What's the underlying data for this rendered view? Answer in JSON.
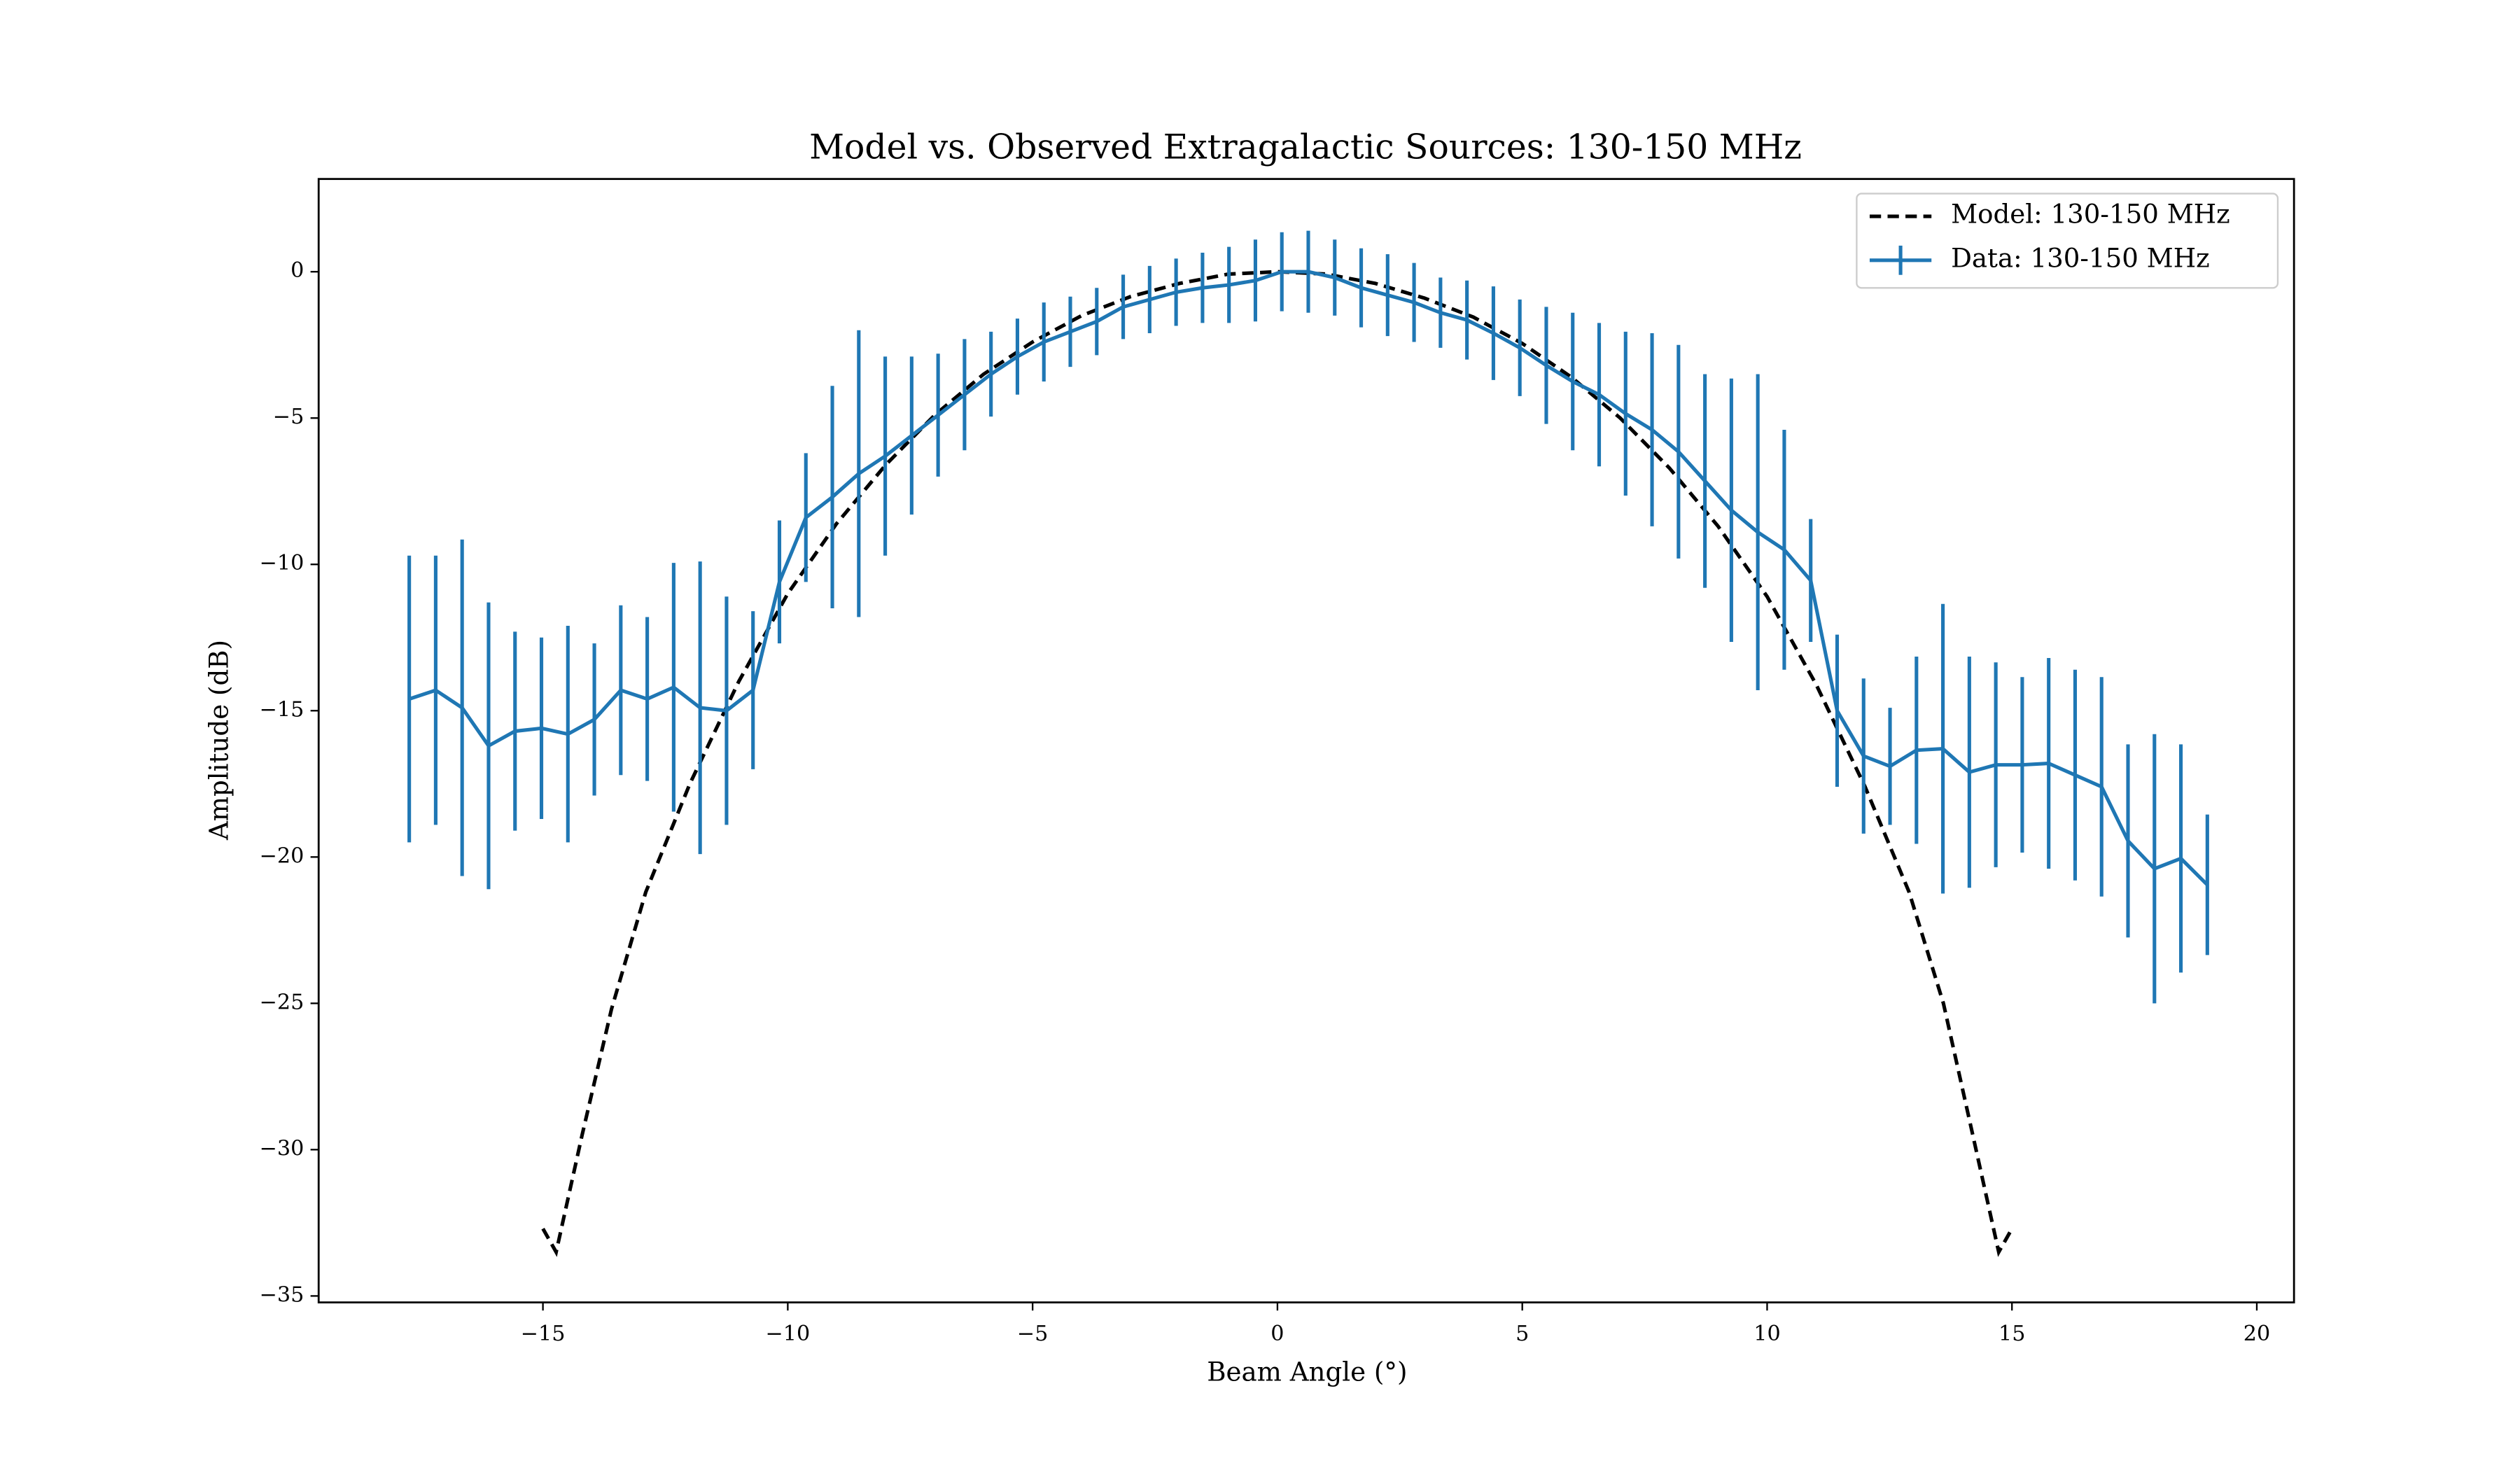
{
  "chart_data": {
    "type": "line",
    "title": "Model vs. Observed Extragalactic Sources: 130-150 MHz",
    "x_label": "Beam Angle (°)",
    "y_label": "Amplitude (dB)",
    "xlim": [
      -19.58,
      20.76
    ],
    "ylim": [
      -35.22,
      3.17
    ],
    "xticks": [
      {
        "value": -15,
        "label": "−15"
      },
      {
        "value": -10,
        "label": "−10"
      },
      {
        "value": -5,
        "label": "−5"
      },
      0,
      5,
      10,
      15,
      20
    ],
    "yticks": [
      0,
      {
        "value": -5,
        "label": "−5"
      },
      {
        "value": -10,
        "label": "−10"
      },
      {
        "value": -15,
        "label": "−15"
      },
      {
        "value": -20,
        "label": "−20"
      },
      {
        "value": -25,
        "label": "−25"
      },
      {
        "value": -30,
        "label": "−30"
      },
      {
        "value": -35,
        "label": "−35"
      }
    ],
    "legend": "upper right",
    "series": [
      {
        "name": "Model: 130-150 MHz",
        "color": "#000000",
        "style": "dashed",
        "x": [
          -15,
          -14.73,
          -14.2,
          -13.6,
          -12.9,
          -12,
          -11,
          -10,
          -9,
          -8,
          -7,
          -6,
          -5,
          -4,
          -3,
          -2,
          -1,
          0,
          1,
          2,
          3,
          4,
          5,
          6,
          7,
          8,
          9,
          10,
          11,
          12,
          12.9,
          13.6,
          14.2,
          14.73,
          15
        ],
        "values": [
          -32.7,
          -33.5,
          -29.5,
          -25.2,
          -21.2,
          -17.5,
          -14.0,
          -11.0,
          -8.6,
          -6.6,
          -4.9,
          -3.5,
          -2.4,
          -1.5,
          -0.85,
          -0.4,
          -0.08,
          0,
          -0.08,
          -0.4,
          -0.9,
          -1.55,
          -2.45,
          -3.6,
          -5.0,
          -6.7,
          -8.7,
          -11.1,
          -14.1,
          -17.6,
          -21.2,
          -25.0,
          -29.5,
          -33.5,
          -32.7
        ]
      },
      {
        "name": "Data: 130-150 MHz",
        "color": "#1f77b4",
        "style": "solid",
        "x": [
          -17.73,
          -17.19,
          -16.65,
          -16.11,
          -15.57,
          -15.03,
          -14.49,
          -13.95,
          -13.41,
          -12.87,
          -12.33,
          -11.79,
          -11.25,
          -10.71,
          -10.17,
          -9.63,
          -9.09,
          -8.55,
          -8.01,
          -7.47,
          -6.93,
          -6.39,
          -5.85,
          -5.31,
          -4.77,
          -4.23,
          -3.69,
          -3.15,
          -2.61,
          -2.07,
          -1.53,
          -0.99,
          -0.45,
          0.09,
          0.63,
          1.17,
          1.71,
          2.25,
          2.79,
          3.33,
          3.87,
          4.41,
          4.95,
          5.49,
          6.03,
          6.57,
          7.11,
          7.65,
          8.19,
          8.73,
          9.27,
          9.81,
          10.35,
          10.89,
          11.43,
          11.97,
          12.51,
          13.05,
          13.59,
          14.13,
          14.67,
          15.21,
          15.75,
          16.29,
          16.83,
          17.37,
          17.91,
          18.45,
          18.99
        ],
        "values": [
          -14.6,
          -14.3,
          -14.9,
          -16.2,
          -15.7,
          -15.6,
          -15.8,
          -15.3,
          -14.3,
          -14.6,
          -14.2,
          -14.9,
          -15.0,
          -14.3,
          -10.6,
          -8.4,
          -7.7,
          -6.9,
          -6.3,
          -5.6,
          -4.9,
          -4.2,
          -3.5,
          -2.9,
          -2.4,
          -2.05,
          -1.7,
          -1.2,
          -0.95,
          -0.7,
          -0.55,
          -0.45,
          -0.3,
          0.0,
          0.0,
          -0.2,
          -0.55,
          -0.8,
          -1.05,
          -1.4,
          -1.65,
          -2.1,
          -2.6,
          -3.2,
          -3.75,
          -4.2,
          -4.85,
          -5.4,
          -6.15,
          -7.15,
          -8.15,
          -8.9,
          -9.5,
          -10.55,
          -15.0,
          -16.55,
          -16.9,
          -16.35,
          -16.3,
          -17.1,
          -16.85,
          -16.85,
          -16.8,
          -17.2,
          -17.6,
          -19.45,
          -20.4,
          -20.05,
          -20.95
        ],
        "errors": [
          4.9,
          4.6,
          5.75,
          4.9,
          3.4,
          3.1,
          3.7,
          2.6,
          2.9,
          2.8,
          4.25,
          5.0,
          3.9,
          2.7,
          2.1,
          2.2,
          3.8,
          4.9,
          3.4,
          2.7,
          2.1,
          1.9,
          1.45,
          1.3,
          1.35,
          1.2,
          1.15,
          1.1,
          1.15,
          1.15,
          1.2,
          1.3,
          1.4,
          1.35,
          1.4,
          1.3,
          1.35,
          1.4,
          1.35,
          1.2,
          1.35,
          1.6,
          1.65,
          2.0,
          2.35,
          2.45,
          2.8,
          3.3,
          3.65,
          3.65,
          4.5,
          5.4,
          4.1,
          2.1,
          2.6,
          2.65,
          2.0,
          3.2,
          4.95,
          3.95,
          3.5,
          3.0,
          3.6,
          3.6,
          3.75,
          3.3,
          4.6,
          3.9,
          2.4
        ]
      }
    ]
  }
}
